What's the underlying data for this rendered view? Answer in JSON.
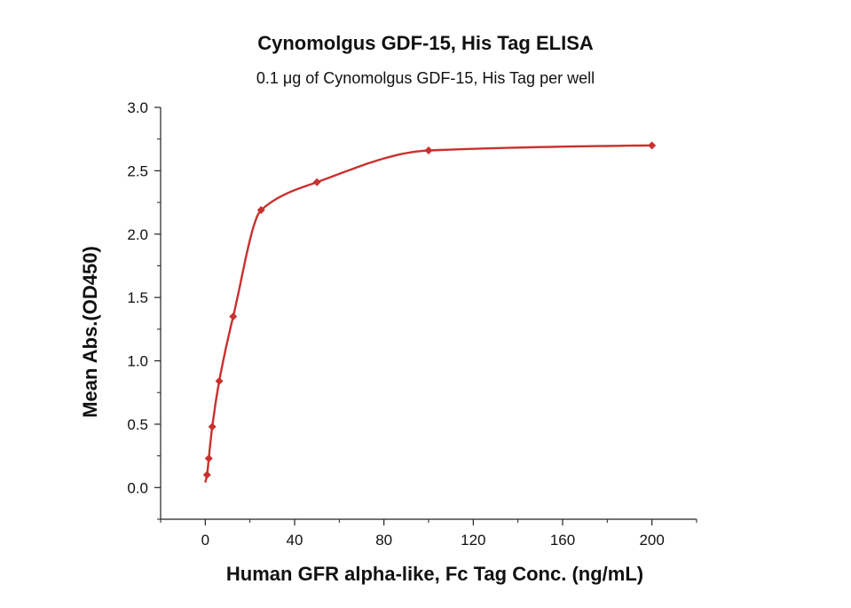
{
  "chart_data": {
    "type": "scatter",
    "title": "Cynomolgus GDF-15, His Tag ELISA",
    "subtitle": "0.1 μg of Cynomolgus GDF-15, His Tag per well",
    "xlabel": "Human GFR alpha-like, Fc Tag Conc. (ng/mL)",
    "ylabel": "Mean Abs.(OD450)",
    "xlim": [
      -20,
      220
    ],
    "ylim": [
      -0.25,
      3.0
    ],
    "x_ticks": [
      0,
      40,
      80,
      120,
      160,
      200
    ],
    "y_ticks": [
      0.0,
      0.5,
      1.0,
      1.5,
      2.0,
      2.5,
      3.0
    ],
    "x_tick_labels": [
      "0",
      "40",
      "80",
      "120",
      "160",
      "200"
    ],
    "y_tick_labels": [
      "0.0",
      "0.5",
      "1.0",
      "1.5",
      "2.0",
      "2.5",
      "3.0"
    ],
    "grid": false,
    "legend": "none",
    "series": [
      {
        "x": [
          0.78,
          1.56,
          3.125,
          6.25,
          12.5,
          25,
          50,
          100,
          200
        ],
        "y": [
          0.1,
          0.23,
          0.48,
          0.84,
          1.35,
          2.19,
          2.41,
          2.66,
          2.7
        ],
        "color": "#c8312f",
        "marker": "diamond",
        "fit_curve": true
      }
    ]
  }
}
